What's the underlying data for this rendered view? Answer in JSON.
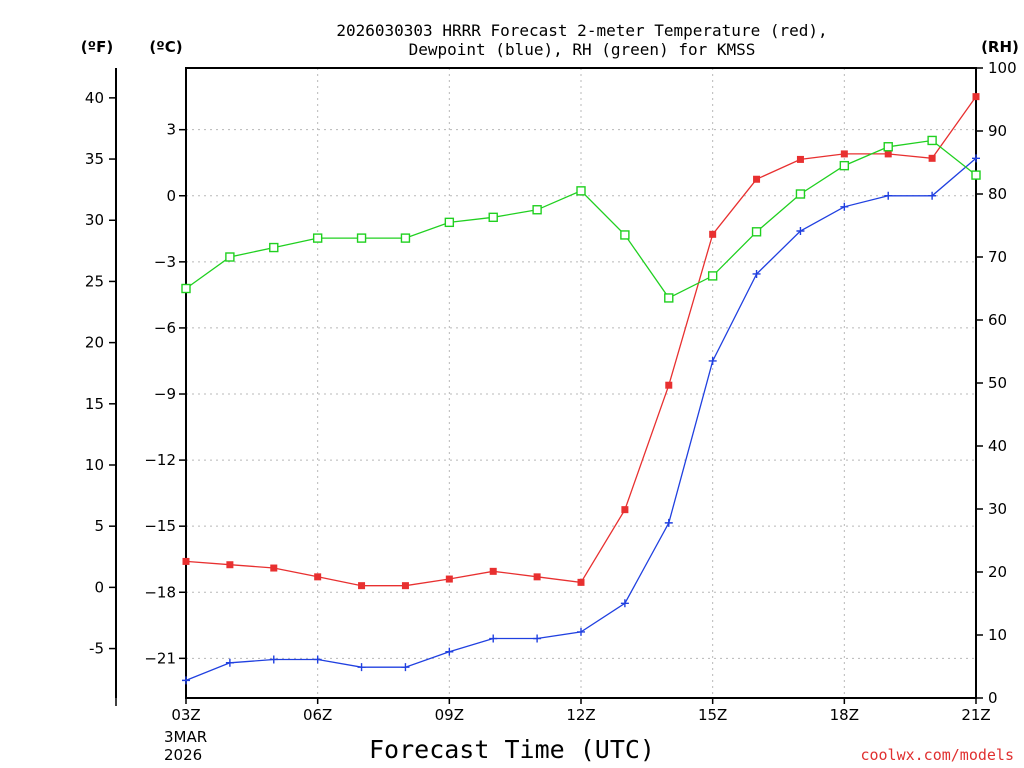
{
  "chart_data": {
    "type": "line",
    "title_line1": "2026030303 HRRR Forecast 2-meter Temperature (red),",
    "title_line2": "Dewpoint (blue), RH (green) for KMSS",
    "unit_f": "(ºF)",
    "unit_c": "(ºC)",
    "unit_rh": "(RH)",
    "xlabel": "Forecast Time (UTC)",
    "date_line1": "3MAR",
    "date_line2": "2026",
    "credit": "coolwx.com/models",
    "x_hours": [
      3,
      4,
      5,
      6,
      7,
      8,
      9,
      10,
      11,
      12,
      13,
      14,
      15,
      16,
      17,
      18,
      19,
      20,
      21
    ],
    "x_ticks": [
      {
        "hour": 3,
        "label": "03Z"
      },
      {
        "hour": 6,
        "label": "06Z"
      },
      {
        "hour": 9,
        "label": "09Z"
      },
      {
        "hour": 12,
        "label": "12Z"
      },
      {
        "hour": 15,
        "label": "15Z"
      },
      {
        "hour": 18,
        "label": "18Z"
      },
      {
        "hour": 21,
        "label": "21Z"
      }
    ],
    "xlim": [
      3,
      21
    ],
    "ylim_c": [
      -22.8,
      5.8
    ],
    "ylim_rh": [
      0,
      100
    ],
    "yticks_c": [
      3,
      0,
      -3,
      -6,
      -9,
      -12,
      -15,
      -18,
      -21
    ],
    "yticks_c_labels": [
      "3",
      "0",
      "−3",
      "−6",
      "−9",
      "−12",
      "−15",
      "−18",
      "−21"
    ],
    "yticks_f": [
      40,
      35,
      30,
      25,
      20,
      15,
      10,
      5,
      0,
      -5
    ],
    "yticks_f_labels": [
      "40",
      "35",
      "30",
      "25",
      "20",
      "15",
      "10",
      "5",
      "0",
      "-5"
    ],
    "yticks_rh": [
      100,
      90,
      80,
      70,
      60,
      50,
      40,
      30,
      20,
      10,
      0
    ],
    "yticks_rh_labels": [
      "100",
      "90",
      "80",
      "70",
      "60",
      "50",
      "40",
      "30",
      "20",
      "10",
      "0"
    ],
    "grid": true,
    "series": [
      {
        "name": "Temperature",
        "axis": "c",
        "color": "#e83030",
        "marker": "filled-square",
        "values": [
          -16.6,
          -16.75,
          -16.9,
          -17.3,
          -17.7,
          -17.7,
          -17.4,
          -17.05,
          -17.3,
          -17.55,
          -14.25,
          -8.6,
          -1.75,
          0.75,
          1.65,
          1.9,
          1.9,
          1.7,
          4.5
        ]
      },
      {
        "name": "Dewpoint",
        "axis": "c",
        "color": "#2040e0",
        "marker": "plus",
        "values": [
          -22.0,
          -21.2,
          -21.05,
          -21.05,
          -21.4,
          -21.4,
          -20.7,
          -20.1,
          -20.1,
          -19.8,
          -18.5,
          -14.85,
          -7.5,
          -3.55,
          -1.6,
          -0.5,
          0.0,
          0.0,
          1.7
        ]
      },
      {
        "name": "RH",
        "axis": "rh",
        "color": "#20d020",
        "marker": "open-square",
        "values": [
          65,
          70,
          71.5,
          73,
          73,
          73,
          75.5,
          76.3,
          77.5,
          80.5,
          73.5,
          63.5,
          67,
          74,
          80,
          84.5,
          87.5,
          88.5,
          83
        ]
      }
    ]
  }
}
